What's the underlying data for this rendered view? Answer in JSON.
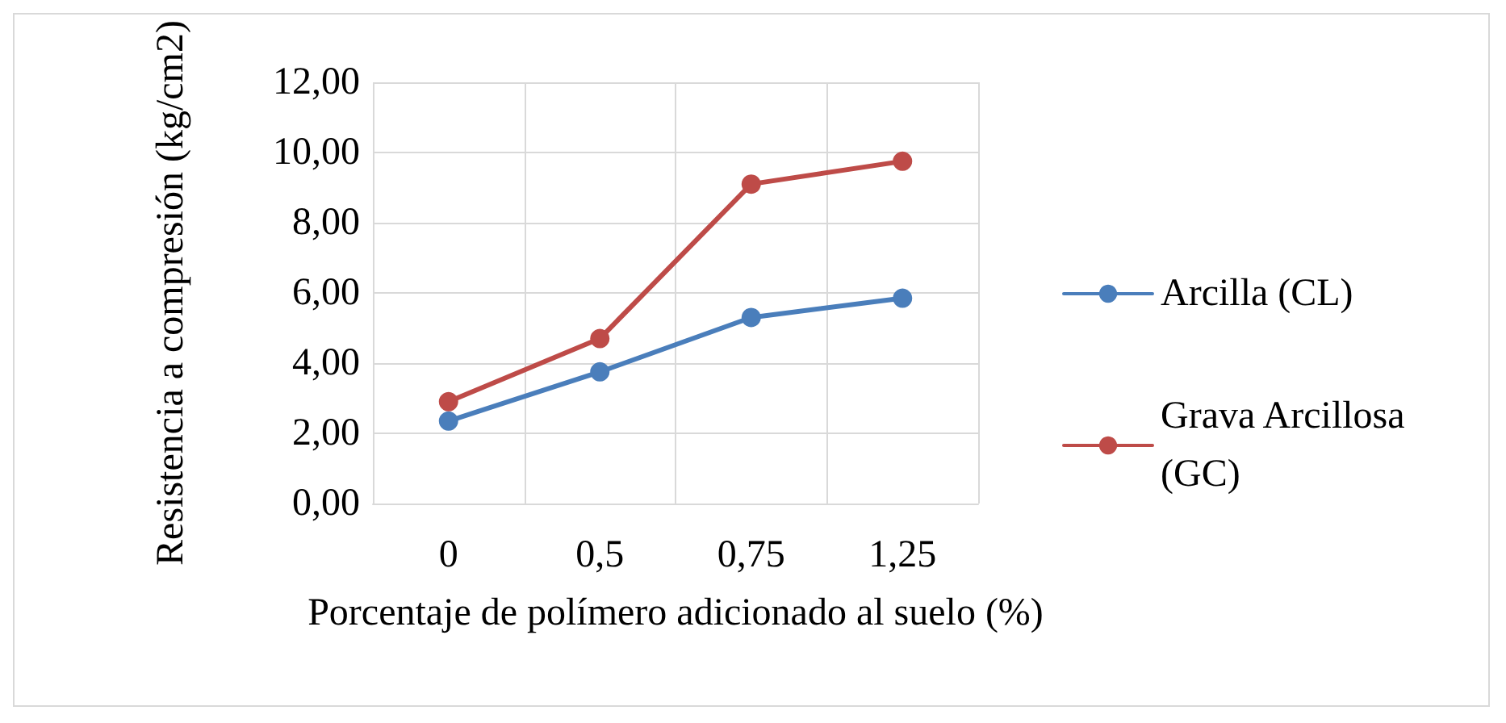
{
  "chart_data": {
    "type": "line",
    "xlabel": "Porcentaje de polímero adicionado al suelo (%)",
    "ylabel": "Resistencia a compresión (kg/cm2)",
    "categories": [
      "0",
      "0,5",
      "0,75",
      "1,25"
    ],
    "series": [
      {
        "name": "Arcilla (CL)",
        "color": "#4a7ebb",
        "values": [
          2.35,
          3.75,
          5.3,
          5.85
        ]
      },
      {
        "name": "Grava Arcillosa (GC)",
        "color": "#be4b48",
        "values": [
          2.9,
          4.7,
          9.1,
          9.75
        ]
      }
    ],
    "ylim": [
      0,
      12
    ],
    "yticks": [
      {
        "value": 0,
        "label": "0,00"
      },
      {
        "value": 2,
        "label": "2,00"
      },
      {
        "value": 4,
        "label": "4,00"
      },
      {
        "value": 6,
        "label": "6,00"
      },
      {
        "value": 8,
        "label": "8,00"
      },
      {
        "value": 10,
        "label": "10,00"
      },
      {
        "value": 12,
        "label": "12,00"
      }
    ],
    "grid": true,
    "legend": "right",
    "marker": "circle",
    "line_style": "solid"
  }
}
